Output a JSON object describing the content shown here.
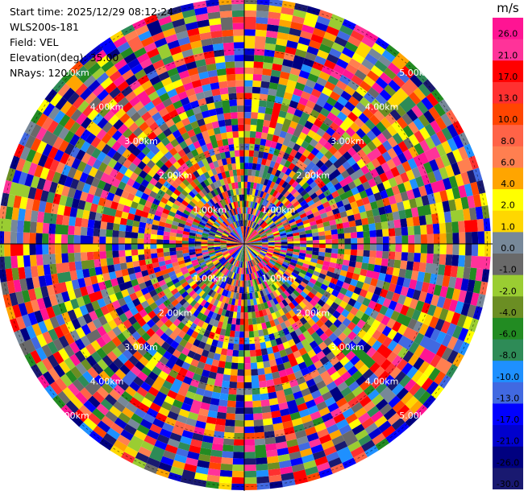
{
  "info": {
    "start_time_label": "Start time:",
    "start_time_value": "2025/12/29 08:12:24",
    "instrument": "WLS200s-181",
    "field_label": "Field:",
    "field_value": "VEL",
    "elevation_label": "Elevation(deg):",
    "elevation_value": "35.00",
    "nrays_label": "NRays:",
    "nrays_value": "120"
  },
  "chart_data": {
    "type": "heatmap",
    "projection": "polar-ppi",
    "n_rays": 120,
    "max_range_km": 5.0,
    "range_ring_labels": [
      "1.00km",
      "2.00km",
      "3.00km",
      "4.00km",
      "5.00km"
    ],
    "colorbar": {
      "unit": "m/s",
      "tick_labels": [
        "26.0",
        "21.0",
        "17.0",
        "13.0",
        "10.0",
        "8.0",
        "6.0",
        "4.0",
        "2.0",
        "1.0",
        "0.0",
        "-1.0",
        "-2.0",
        "-4.0",
        "-6.0",
        "-8.0",
        "-10.0",
        "-13.0",
        "-17.0",
        "-21.0",
        "-26.0",
        "-30.0"
      ],
      "colors": [
        "#ff1493",
        "#ff3399",
        "#ff0000",
        "#ff3030",
        "#ff4500",
        "#ff6347",
        "#ff7f50",
        "#ffa500",
        "#ffff00",
        "#ffd700",
        "#778899",
        "#696969",
        "#9acd32",
        "#6b8e23",
        "#228b22",
        "#2e8b57",
        "#1e90ff",
        "#4169e1",
        "#0000ff",
        "#0000cd",
        "#000080",
        "#191970"
      ]
    }
  }
}
